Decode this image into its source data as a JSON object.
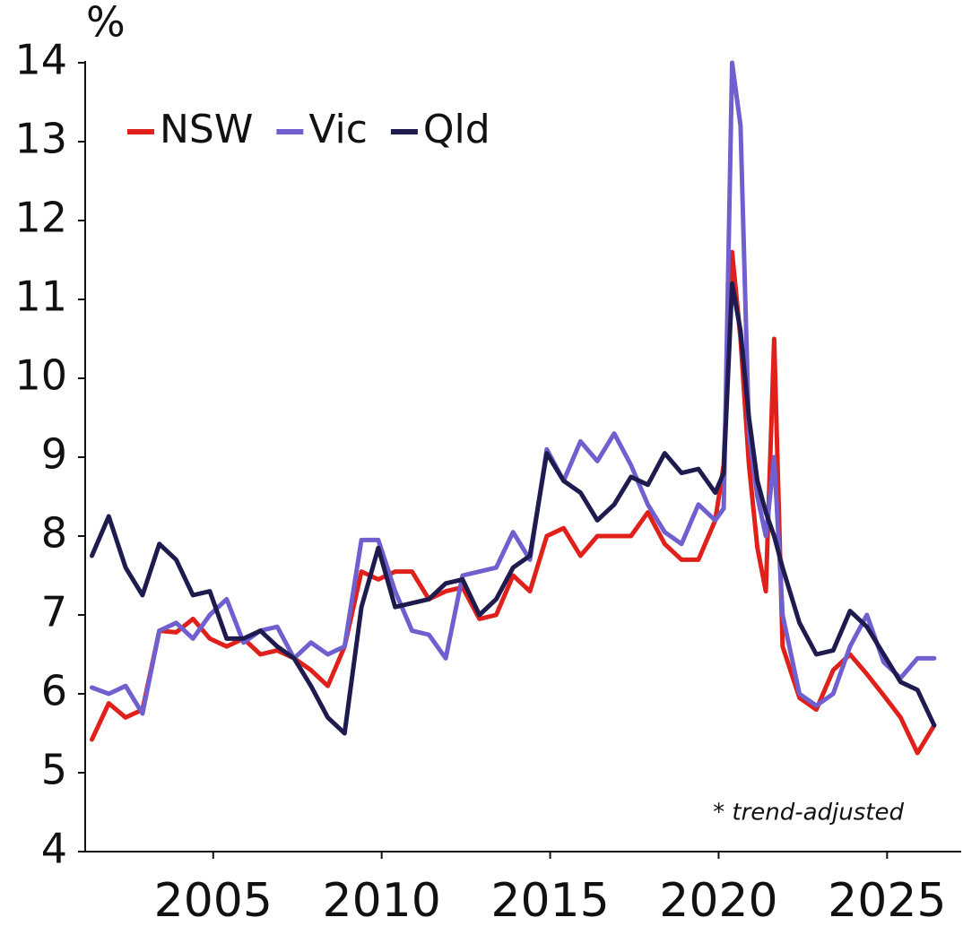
{
  "chart_data": {
    "type": "line",
    "y_label": "%",
    "annotation": "* trend-adjusted",
    "legend": "upper left",
    "x": [
      2001.4,
      2001.9,
      2002.4,
      2002.9,
      2003.4,
      2003.9,
      2004.4,
      2004.9,
      2005.4,
      2005.9,
      2006.4,
      2006.9,
      2007.4,
      2007.9,
      2008.4,
      2008.9,
      2009.4,
      2009.9,
      2010.4,
      2010.9,
      2011.4,
      2011.9,
      2012.4,
      2012.9,
      2013.4,
      2013.9,
      2014.4,
      2014.9,
      2015.4,
      2015.9,
      2016.4,
      2016.9,
      2017.4,
      2017.9,
      2018.4,
      2018.9,
      2019.4,
      2019.9,
      2020.15,
      2020.4,
      2020.65,
      2020.9,
      2021.15,
      2021.4,
      2021.65,
      2021.9,
      2022.4,
      2022.9,
      2023.4,
      2023.9,
      2024.4,
      2024.9,
      2025.4,
      2025.9,
      2026.4
    ],
    "series": [
      {
        "name": "NSW",
        "color": "#e0201b",
        "values": [
          5.42,
          5.88,
          5.7,
          5.8,
          6.8,
          6.78,
          6.95,
          6.7,
          6.6,
          6.7,
          6.5,
          6.55,
          6.45,
          6.3,
          6.1,
          6.6,
          7.55,
          7.45,
          7.55,
          7.55,
          7.2,
          7.3,
          7.35,
          6.95,
          7.0,
          7.5,
          7.3,
          8.0,
          8.1,
          7.75,
          8.0,
          8.0,
          8.0,
          8.3,
          7.9,
          7.7,
          7.7,
          8.2,
          8.9,
          11.6,
          10.5,
          8.9,
          7.85,
          7.3,
          10.5,
          6.6,
          5.95,
          5.8,
          6.3,
          6.5,
          6.25,
          5.98,
          5.7,
          5.25,
          5.6
        ]
      },
      {
        "name": "Vic",
        "color": "#6f5fcf",
        "values": [
          6.08,
          6.0,
          6.1,
          5.75,
          6.8,
          6.9,
          6.7,
          7.0,
          7.2,
          6.65,
          6.8,
          6.85,
          6.45,
          6.65,
          6.5,
          6.6,
          7.95,
          7.95,
          7.3,
          6.8,
          6.75,
          6.45,
          7.5,
          7.55,
          7.6,
          8.05,
          7.7,
          9.1,
          8.7,
          9.2,
          8.95,
          9.3,
          8.9,
          8.4,
          8.05,
          7.9,
          8.4,
          8.2,
          8.35,
          14.0,
          13.2,
          9.3,
          8.5,
          8.0,
          9.0,
          7.0,
          6.0,
          5.85,
          6.0,
          6.6,
          7.0,
          6.4,
          6.2,
          6.45,
          6.45
        ]
      },
      {
        "name": "Qld",
        "color": "#1e1b4f",
        "values": [
          7.75,
          8.25,
          7.6,
          7.25,
          7.9,
          7.7,
          7.25,
          7.3,
          6.7,
          6.7,
          6.8,
          6.6,
          6.45,
          6.1,
          5.7,
          5.5,
          7.1,
          7.85,
          7.1,
          7.15,
          7.2,
          7.4,
          7.45,
          7.0,
          7.2,
          7.6,
          7.75,
          9.05,
          8.7,
          8.55,
          8.2,
          8.4,
          8.75,
          8.65,
          9.05,
          8.8,
          8.85,
          8.55,
          8.8,
          11.2,
          10.6,
          9.5,
          8.7,
          8.3,
          8.0,
          7.6,
          6.9,
          6.5,
          6.55,
          7.05,
          6.85,
          6.5,
          6.15,
          6.05,
          5.6
        ]
      }
    ],
    "xlim": [
      2001.2,
      2027.2
    ],
    "ylim": [
      4,
      14
    ],
    "xticks": [
      2005,
      2010,
      2015,
      2020,
      2025
    ],
    "yticks": [
      4,
      5,
      6,
      7,
      8,
      9,
      10,
      11,
      12,
      13,
      14
    ]
  }
}
